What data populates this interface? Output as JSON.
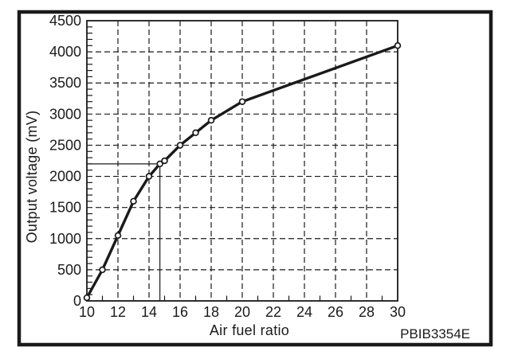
{
  "figure": {
    "code": "PBIB3354E"
  },
  "colors": {
    "ink": "#1a1a1a",
    "background": "#ffffff"
  },
  "chart_data": {
    "type": "line",
    "title": "",
    "xlabel": "Air fuel ratio",
    "ylabel": "Output voltage (mV)",
    "xlim": [
      10,
      30
    ],
    "ylim": [
      0,
      4500
    ],
    "x_major_ticks": [
      10,
      12,
      14,
      16,
      18,
      20,
      22,
      24,
      26,
      28,
      30
    ],
    "x_minor_tick_step": 1,
    "y_major_ticks": [
      0,
      500,
      1000,
      1500,
      2000,
      2500,
      3000,
      3500,
      4000,
      4500
    ],
    "y_minor_tick_step": 100,
    "grid": "dashed-major",
    "legend": "none",
    "series": [
      {
        "name": "Output voltage vs air fuel ratio",
        "marker": "open-circle",
        "points": [
          [
            10,
            50
          ],
          [
            11,
            500
          ],
          [
            12,
            1050
          ],
          [
            13,
            1600
          ],
          [
            14,
            2000
          ],
          [
            14.7,
            2200
          ],
          [
            15,
            2250
          ],
          [
            16,
            2500
          ],
          [
            17,
            2700
          ],
          [
            18,
            2900
          ],
          [
            20,
            3200
          ],
          [
            30,
            4100
          ]
        ]
      }
    ],
    "reference_marker": {
      "x": 14.7,
      "y": 2200,
      "description": "thin solid crosshair lines from y-axis and x-axis meeting the curve"
    }
  }
}
